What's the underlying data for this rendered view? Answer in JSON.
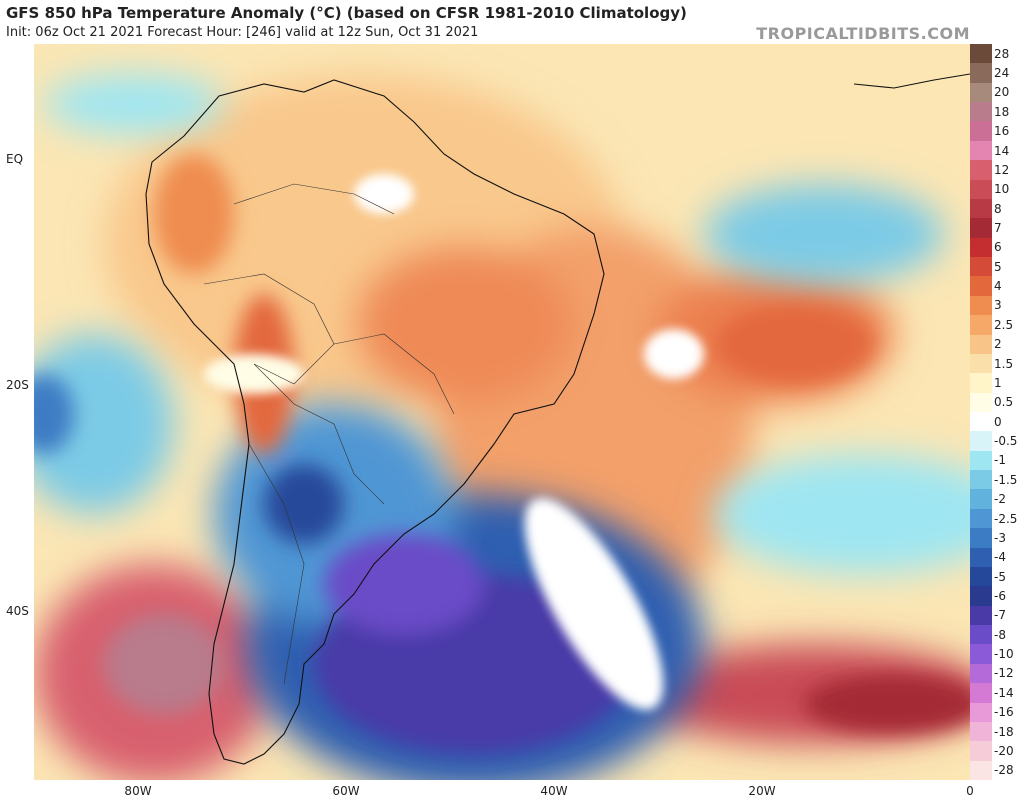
{
  "header": {
    "title": "GFS 850 hPa Temperature Anomaly (°C) (based on CFSR 1981-2010 Climatology)",
    "subtitle": "Init: 06z Oct 21 2021   Forecast Hour: [246]   valid at 12z Sun, Oct 31 2021",
    "watermark": "TROPICALTIDBITS.COM"
  },
  "axes": {
    "lat_labels": [
      "EQ",
      "20S",
      "40S"
    ],
    "lon_labels": [
      "80W",
      "60W",
      "40W",
      "20W",
      "0"
    ]
  },
  "colorbar": {
    "labels": [
      "28",
      "24",
      "20",
      "18",
      "16",
      "14",
      "12",
      "10",
      "8",
      "7",
      "6",
      "5",
      "4",
      "3",
      "2.5",
      "2",
      "1.5",
      "1",
      "0.5",
      "0",
      "-0.5",
      "-1",
      "-1.5",
      "-2",
      "-2.5",
      "-3",
      "-4",
      "-5",
      "-6",
      "-7",
      "-8",
      "-10",
      "-12",
      "-14",
      "-16",
      "-18",
      "-20",
      "-28"
    ],
    "colors": [
      "#6b4a3a",
      "#8a6a5a",
      "#a88a7c",
      "#b87c8c",
      "#cc6f96",
      "#e385b0",
      "#d8606e",
      "#c94c56",
      "#b83a44",
      "#a42a36",
      "#c42e30",
      "#d44c38",
      "#e3683c",
      "#ef8c50",
      "#f5a868",
      "#f8c488",
      "#fadfaa",
      "#fff5c8",
      "#fffde6",
      "#ffffff",
      "#d8f4f8",
      "#9ee6f2",
      "#7ccbe6",
      "#62b2de",
      "#4f96d4",
      "#3c7cc4",
      "#2f5fb0",
      "#26489a",
      "#2a3a8e",
      "#4a3aa8",
      "#6a4cc8",
      "#8a5ad8",
      "#b46ad8",
      "#d47ad4",
      "#e89ad8",
      "#f0b4d8",
      "#f6ccd8",
      "#fbe4e4"
    ]
  },
  "map_regions": {
    "warm_anomalies": [
      "Brazil interior",
      "Andes western coast",
      "South Atlantic subtropics",
      "Southern Chile/Patagonia",
      "Southern Ocean"
    ],
    "cold_anomalies": [
      "Northern Argentina / Paraguay",
      "Uruguay / South Atlantic coast",
      "Southwest Atlantic",
      "Eastern Pacific"
    ]
  }
}
